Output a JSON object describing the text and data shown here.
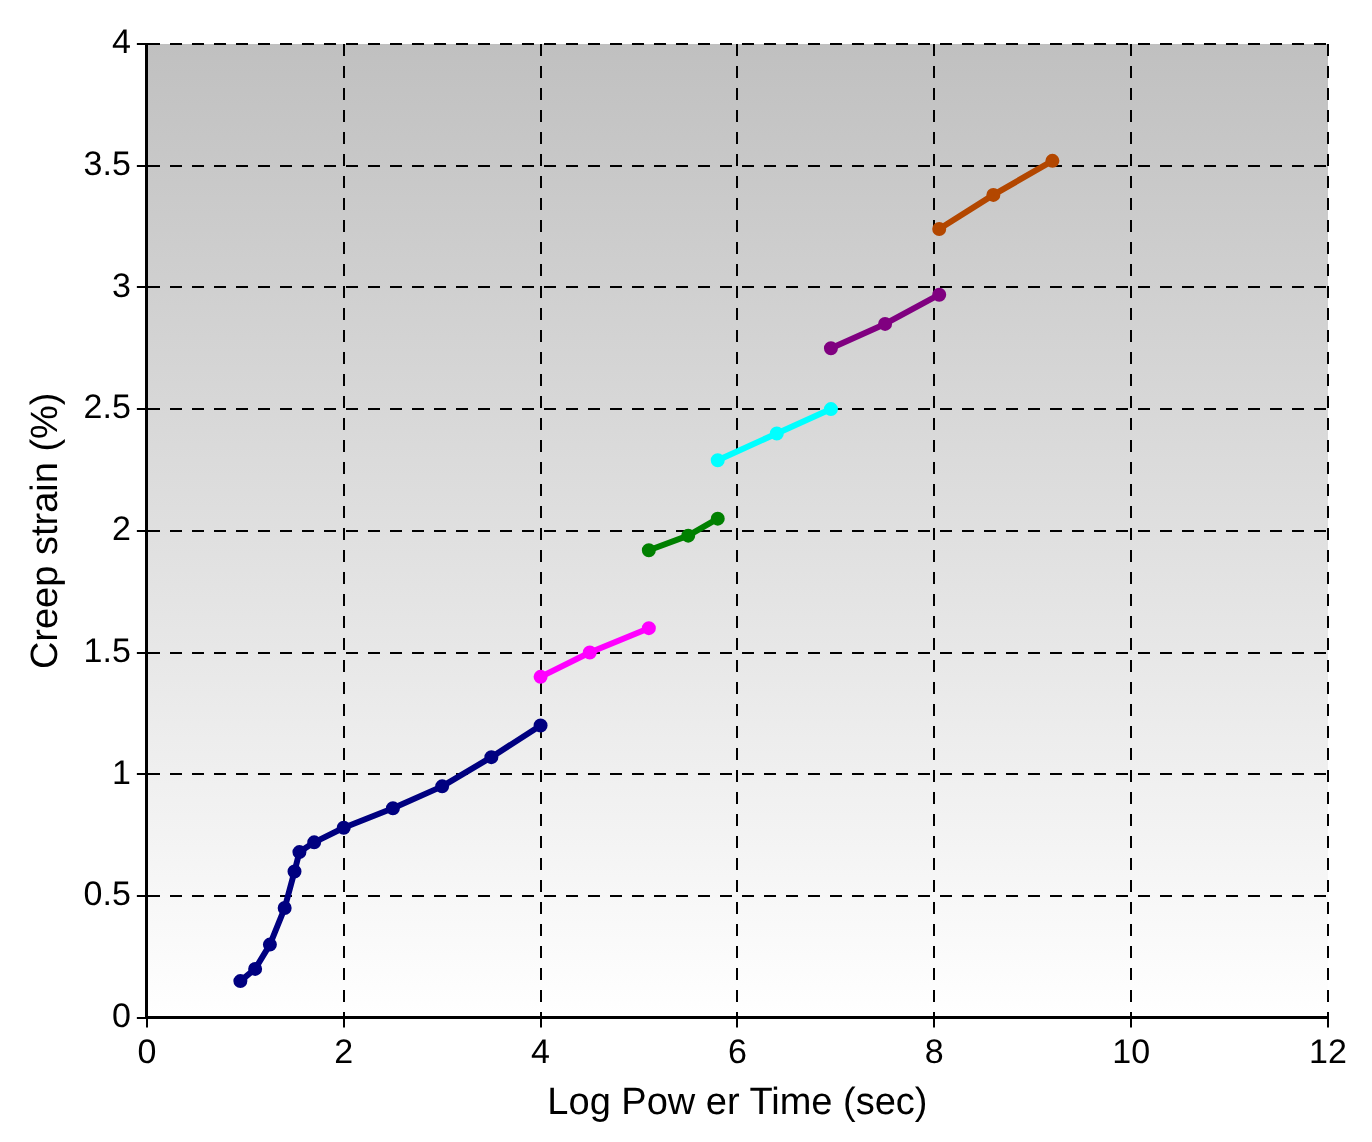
{
  "chart_data": {
    "type": "line",
    "xlabel": "Log Pow er Time (sec)",
    "ylabel": "Creep strain (%)",
    "xlim": [
      0,
      12
    ],
    "xticks": [
      0,
      2,
      4,
      6,
      8,
      10,
      12
    ],
    "ylim": [
      0,
      4
    ],
    "yticks": [
      0,
      0.5,
      1,
      1.5,
      2,
      2.5,
      3,
      3.5,
      4
    ],
    "grid": true,
    "legend": false,
    "marker": "circle",
    "line_style": "solid",
    "series": [
      {
        "color": "#000080",
        "x": [
          0.95,
          1.1,
          1.25,
          1.4,
          1.5,
          1.55,
          1.7,
          2,
          2.5,
          3,
          3.5,
          4
        ],
        "values": [
          0.15,
          0.2,
          0.3,
          0.45,
          0.6,
          0.68,
          0.72,
          0.78,
          0.86,
          0.95,
          1.07,
          1.2
        ]
      },
      {
        "color": "#ff00ff",
        "x": [
          4,
          4.5,
          5.1
        ],
        "values": [
          1.4,
          1.5,
          1.6
        ]
      },
      {
        "color": "#008000",
        "x": [
          5.1,
          5.5,
          5.8
        ],
        "values": [
          1.92,
          1.98,
          2.05
        ]
      },
      {
        "color": "#00ffff",
        "x": [
          5.8,
          6.4,
          6.95
        ],
        "values": [
          2.29,
          2.4,
          2.5
        ]
      },
      {
        "color": "#800080",
        "x": [
          6.95,
          7.5,
          8.05
        ],
        "values": [
          2.75,
          2.85,
          2.97
        ]
      },
      {
        "color": "#b34700",
        "x": [
          8.05,
          8.6,
          9.2
        ],
        "values": [
          3.24,
          3.38,
          3.52
        ]
      }
    ]
  }
}
